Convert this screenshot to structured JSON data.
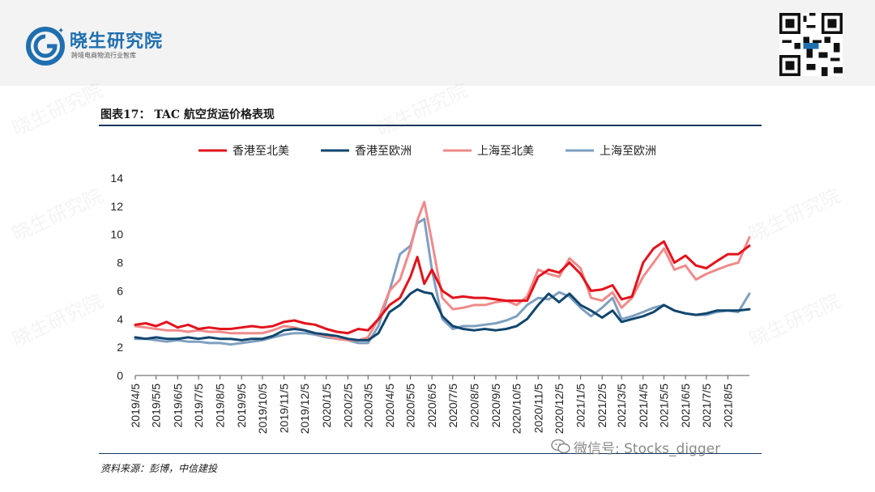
{
  "header": {
    "logo_title": "晓生研究院",
    "logo_subtitle": "跨境电商物流行业智库",
    "logo_letter": "G"
  },
  "figure": {
    "title": "图表17： TAC 航空货运价格表现",
    "source": "资料来源：彭博，中信建投"
  },
  "wechat": {
    "text": "微信号: Stocks_digger",
    "icon": "wechat-icon"
  },
  "watermark": "晓生研究院",
  "colors": {
    "hk_na": "#e3121b",
    "hk_eu": "#11466e",
    "sh_na": "#f08a8a",
    "sh_eu": "#7f9fc0",
    "rule": "#17375e",
    "logo": "#1f6fb0"
  },
  "chart_data": {
    "type": "line",
    "ylim": [
      0,
      14
    ],
    "yticks": [
      0,
      2,
      4,
      6,
      8,
      10,
      12,
      14
    ],
    "grid": false,
    "legend_position": "top",
    "xticks": [
      "2019/4/5",
      "2019/5/5",
      "2019/6/5",
      "2019/7/5",
      "2019/8/5",
      "2019/9/5",
      "2019/10/5",
      "2019/11/5",
      "2019/12/5",
      "2020/1/5",
      "2020/2/5",
      "2020/3/5",
      "2020/4/5",
      "2020/5/5",
      "2020/6/5",
      "2020/7/5",
      "2020/8/5",
      "2020/9/5",
      "2020/10/5",
      "2020/11/5",
      "2020/12/5",
      "2021/1/5",
      "2021/2/5",
      "2021/3/5",
      "2021/4/5",
      "2021/5/5",
      "2021/6/5",
      "2021/7/5",
      "2021/8/5"
    ],
    "x_start": "2019/4/5",
    "x_end": "2021/9/5",
    "series": [
      {
        "name": "香港至北美",
        "color_key": "hk_na",
        "width": 3,
        "points": [
          [
            "2019/4/5",
            3.6
          ],
          [
            "2019/4/20",
            3.7
          ],
          [
            "2019/5/5",
            3.5
          ],
          [
            "2019/5/20",
            3.8
          ],
          [
            "2019/6/5",
            3.4
          ],
          [
            "2019/6/20",
            3.6
          ],
          [
            "2019/7/5",
            3.3
          ],
          [
            "2019/7/20",
            3.4
          ],
          [
            "2019/8/5",
            3.3
          ],
          [
            "2019/8/20",
            3.3
          ],
          [
            "2019/9/5",
            3.4
          ],
          [
            "2019/9/20",
            3.5
          ],
          [
            "2019/10/5",
            3.4
          ],
          [
            "2019/10/20",
            3.5
          ],
          [
            "2019/11/5",
            3.8
          ],
          [
            "2019/11/20",
            3.9
          ],
          [
            "2019/12/5",
            3.7
          ],
          [
            "2019/12/20",
            3.6
          ],
          [
            "2020/1/5",
            3.3
          ],
          [
            "2020/1/20",
            3.1
          ],
          [
            "2020/2/5",
            3.0
          ],
          [
            "2020/2/20",
            3.3
          ],
          [
            "2020/3/5",
            3.2
          ],
          [
            "2020/3/20",
            4.0
          ],
          [
            "2020/4/5",
            5.0
          ],
          [
            "2020/4/20",
            5.5
          ],
          [
            "2020/5/5",
            7.0
          ],
          [
            "2020/5/15",
            8.4
          ],
          [
            "2020/5/25",
            6.5
          ],
          [
            "2020/6/5",
            7.5
          ],
          [
            "2020/6/20",
            6.0
          ],
          [
            "2020/7/5",
            5.5
          ],
          [
            "2020/7/20",
            5.6
          ],
          [
            "2020/8/5",
            5.5
          ],
          [
            "2020/8/20",
            5.5
          ],
          [
            "2020/9/5",
            5.4
          ],
          [
            "2020/9/20",
            5.3
          ],
          [
            "2020/10/5",
            5.3
          ],
          [
            "2020/10/20",
            5.3
          ],
          [
            "2020/11/5",
            7.0
          ],
          [
            "2020/11/20",
            7.5
          ],
          [
            "2020/12/5",
            7.3
          ],
          [
            "2020/12/20",
            8.0
          ],
          [
            "2021/1/5",
            7.2
          ],
          [
            "2021/1/20",
            6.0
          ],
          [
            "2021/2/5",
            6.1
          ],
          [
            "2021/2/20",
            6.4
          ],
          [
            "2021/3/5",
            5.4
          ],
          [
            "2021/3/20",
            5.6
          ],
          [
            "2021/4/5",
            8.0
          ],
          [
            "2021/4/20",
            9.0
          ],
          [
            "2021/5/5",
            9.5
          ],
          [
            "2021/5/20",
            8.0
          ],
          [
            "2021/6/5",
            8.5
          ],
          [
            "2021/6/20",
            7.8
          ],
          [
            "2021/7/5",
            7.6
          ],
          [
            "2021/7/20",
            8.1
          ],
          [
            "2021/8/5",
            8.6
          ],
          [
            "2021/8/20",
            8.6
          ],
          [
            "2021/9/5",
            9.2
          ]
        ]
      },
      {
        "name": "香港至欧洲",
        "color_key": "hk_eu",
        "width": 3,
        "points": [
          [
            "2019/4/5",
            2.7
          ],
          [
            "2019/4/20",
            2.6
          ],
          [
            "2019/5/5",
            2.7
          ],
          [
            "2019/5/20",
            2.6
          ],
          [
            "2019/6/5",
            2.6
          ],
          [
            "2019/6/20",
            2.7
          ],
          [
            "2019/7/5",
            2.6
          ],
          [
            "2019/7/20",
            2.7
          ],
          [
            "2019/8/5",
            2.6
          ],
          [
            "2019/8/20",
            2.6
          ],
          [
            "2019/9/5",
            2.5
          ],
          [
            "2019/9/20",
            2.6
          ],
          [
            "2019/10/5",
            2.6
          ],
          [
            "2019/10/20",
            2.8
          ],
          [
            "2019/11/5",
            3.2
          ],
          [
            "2019/11/20",
            3.3
          ],
          [
            "2019/12/5",
            3.2
          ],
          [
            "2019/12/20",
            3.0
          ],
          [
            "2020/1/5",
            2.9
          ],
          [
            "2020/1/20",
            2.8
          ],
          [
            "2020/2/5",
            2.6
          ],
          [
            "2020/2/20",
            2.5
          ],
          [
            "2020/3/5",
            2.5
          ],
          [
            "2020/3/20",
            3.0
          ],
          [
            "2020/4/5",
            4.5
          ],
          [
            "2020/4/20",
            5.0
          ],
          [
            "2020/5/5",
            5.8
          ],
          [
            "2020/5/15",
            6.1
          ],
          [
            "2020/5/25",
            5.9
          ],
          [
            "2020/6/5",
            5.8
          ],
          [
            "2020/6/20",
            4.2
          ],
          [
            "2020/7/5",
            3.5
          ],
          [
            "2020/7/20",
            3.3
          ],
          [
            "2020/8/5",
            3.2
          ],
          [
            "2020/8/20",
            3.3
          ],
          [
            "2020/9/5",
            3.2
          ],
          [
            "2020/9/20",
            3.3
          ],
          [
            "2020/10/5",
            3.5
          ],
          [
            "2020/10/20",
            4.0
          ],
          [
            "2020/11/5",
            5.0
          ],
          [
            "2020/11/20",
            5.8
          ],
          [
            "2020/12/5",
            5.2
          ],
          [
            "2020/12/20",
            5.8
          ],
          [
            "2021/1/5",
            5.0
          ],
          [
            "2021/1/20",
            4.6
          ],
          [
            "2021/2/5",
            4.1
          ],
          [
            "2021/2/20",
            4.6
          ],
          [
            "2021/3/5",
            3.8
          ],
          [
            "2021/3/20",
            4.0
          ],
          [
            "2021/4/5",
            4.2
          ],
          [
            "2021/4/20",
            4.5
          ],
          [
            "2021/5/5",
            5.0
          ],
          [
            "2021/5/20",
            4.6
          ],
          [
            "2021/6/5",
            4.4
          ],
          [
            "2021/6/20",
            4.3
          ],
          [
            "2021/7/5",
            4.4
          ],
          [
            "2021/7/20",
            4.6
          ],
          [
            "2021/8/5",
            4.6
          ],
          [
            "2021/8/20",
            4.6
          ],
          [
            "2021/9/5",
            4.7
          ]
        ]
      },
      {
        "name": "上海至北美",
        "color_key": "sh_na",
        "width": 3,
        "points": [
          [
            "2019/4/5",
            3.5
          ],
          [
            "2019/4/20",
            3.4
          ],
          [
            "2019/5/5",
            3.3
          ],
          [
            "2019/5/20",
            3.2
          ],
          [
            "2019/6/5",
            3.2
          ],
          [
            "2019/6/20",
            3.1
          ],
          [
            "2019/7/5",
            3.2
          ],
          [
            "2019/7/20",
            3.1
          ],
          [
            "2019/8/5",
            3.1
          ],
          [
            "2019/8/20",
            3.0
          ],
          [
            "2019/9/5",
            3.0
          ],
          [
            "2019/9/20",
            3.0
          ],
          [
            "2019/10/5",
            3.0
          ],
          [
            "2019/10/20",
            3.2
          ],
          [
            "2019/11/5",
            3.5
          ],
          [
            "2019/11/20",
            3.4
          ],
          [
            "2019/12/5",
            3.2
          ],
          [
            "2019/12/20",
            3.0
          ],
          [
            "2020/1/5",
            2.8
          ],
          [
            "2020/1/20",
            2.6
          ],
          [
            "2020/2/5",
            2.5
          ],
          [
            "2020/2/20",
            2.5
          ],
          [
            "2020/3/5",
            2.7
          ],
          [
            "2020/3/20",
            4.0
          ],
          [
            "2020/4/5",
            6.0
          ],
          [
            "2020/4/20",
            6.8
          ],
          [
            "2020/5/5",
            9.0
          ],
          [
            "2020/5/15",
            11.0
          ],
          [
            "2020/5/25",
            12.3
          ],
          [
            "2020/6/5",
            9.5
          ],
          [
            "2020/6/20",
            5.5
          ],
          [
            "2020/7/5",
            4.7
          ],
          [
            "2020/7/20",
            4.8
          ],
          [
            "2020/8/5",
            5.0
          ],
          [
            "2020/8/20",
            5.0
          ],
          [
            "2020/9/5",
            5.2
          ],
          [
            "2020/9/20",
            5.3
          ],
          [
            "2020/10/5",
            5.0
          ],
          [
            "2020/10/20",
            5.6
          ],
          [
            "2020/11/5",
            7.5
          ],
          [
            "2020/11/20",
            7.2
          ],
          [
            "2020/12/5",
            7.0
          ],
          [
            "2020/12/20",
            8.3
          ],
          [
            "2021/1/5",
            7.6
          ],
          [
            "2021/1/20",
            5.5
          ],
          [
            "2021/2/5",
            5.3
          ],
          [
            "2021/2/20",
            5.9
          ],
          [
            "2021/3/5",
            4.8
          ],
          [
            "2021/3/20",
            5.5
          ],
          [
            "2021/4/5",
            7.0
          ],
          [
            "2021/4/20",
            8.0
          ],
          [
            "2021/5/5",
            9.0
          ],
          [
            "2021/5/20",
            7.5
          ],
          [
            "2021/6/5",
            7.8
          ],
          [
            "2021/6/20",
            6.8
          ],
          [
            "2021/7/5",
            7.2
          ],
          [
            "2021/7/20",
            7.5
          ],
          [
            "2021/8/5",
            7.8
          ],
          [
            "2021/8/20",
            8.0
          ],
          [
            "2021/9/5",
            9.8
          ]
        ]
      },
      {
        "name": "上海至欧洲",
        "color_key": "sh_eu",
        "width": 3,
        "points": [
          [
            "2019/4/5",
            2.6
          ],
          [
            "2019/4/20",
            2.6
          ],
          [
            "2019/5/5",
            2.5
          ],
          [
            "2019/5/20",
            2.4
          ],
          [
            "2019/6/5",
            2.5
          ],
          [
            "2019/6/20",
            2.4
          ],
          [
            "2019/7/5",
            2.4
          ],
          [
            "2019/7/20",
            2.3
          ],
          [
            "2019/8/5",
            2.3
          ],
          [
            "2019/8/20",
            2.2
          ],
          [
            "2019/9/5",
            2.3
          ],
          [
            "2019/9/20",
            2.4
          ],
          [
            "2019/10/5",
            2.5
          ],
          [
            "2019/10/20",
            2.7
          ],
          [
            "2019/11/5",
            2.9
          ],
          [
            "2019/11/20",
            3.0
          ],
          [
            "2019/12/5",
            3.0
          ],
          [
            "2019/12/20",
            2.9
          ],
          [
            "2020/1/5",
            2.7
          ],
          [
            "2020/1/20",
            2.6
          ],
          [
            "2020/2/5",
            2.5
          ],
          [
            "2020/2/20",
            2.3
          ],
          [
            "2020/3/5",
            2.3
          ],
          [
            "2020/3/20",
            3.5
          ],
          [
            "2020/4/5",
            6.0
          ],
          [
            "2020/4/20",
            8.6
          ],
          [
            "2020/5/5",
            9.2
          ],
          [
            "2020/5/15",
            10.8
          ],
          [
            "2020/5/25",
            11.1
          ],
          [
            "2020/6/5",
            7.5
          ],
          [
            "2020/6/20",
            4.0
          ],
          [
            "2020/7/5",
            3.3
          ],
          [
            "2020/7/20",
            3.5
          ],
          [
            "2020/8/5",
            3.5
          ],
          [
            "2020/8/20",
            3.6
          ],
          [
            "2020/9/5",
            3.7
          ],
          [
            "2020/9/20",
            3.9
          ],
          [
            "2020/10/5",
            4.2
          ],
          [
            "2020/10/20",
            5.0
          ],
          [
            "2020/11/5",
            5.5
          ],
          [
            "2020/11/20",
            5.4
          ],
          [
            "2020/12/5",
            5.9
          ],
          [
            "2020/12/20",
            5.6
          ],
          [
            "2021/1/5",
            4.8
          ],
          [
            "2021/1/20",
            4.2
          ],
          [
            "2021/2/5",
            4.8
          ],
          [
            "2021/2/20",
            5.5
          ],
          [
            "2021/3/5",
            4.0
          ],
          [
            "2021/3/20",
            4.2
          ],
          [
            "2021/4/5",
            4.5
          ],
          [
            "2021/4/20",
            4.8
          ],
          [
            "2021/5/5",
            5.0
          ],
          [
            "2021/5/20",
            4.6
          ],
          [
            "2021/6/5",
            4.4
          ],
          [
            "2021/6/20",
            4.3
          ],
          [
            "2021/7/5",
            4.3
          ],
          [
            "2021/7/20",
            4.5
          ],
          [
            "2021/8/5",
            4.6
          ],
          [
            "2021/8/20",
            4.5
          ],
          [
            "2021/9/5",
            5.8
          ]
        ]
      }
    ]
  }
}
